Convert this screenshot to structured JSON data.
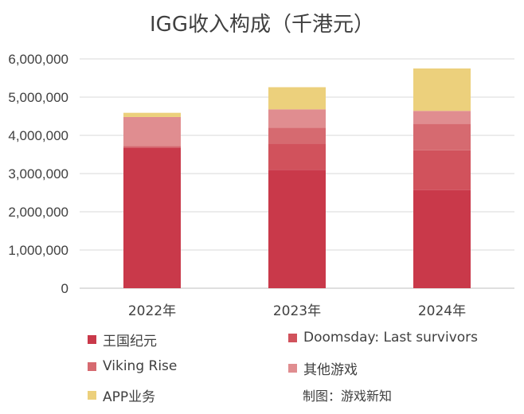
{
  "chart_data": {
    "type": "bar",
    "stacked": true,
    "title": "IGG收入构成（千港元）",
    "categories": [
      "2022年",
      "2023年",
      "2024年"
    ],
    "series": [
      {
        "name": "王国纪元",
        "color": "#c9394a",
        "values": [
          3680000,
          3100000,
          2570000
        ]
      },
      {
        "name": "Doomsday: Last survivors",
        "color": "#d1525c",
        "values": [
          0,
          680000,
          1040000
        ]
      },
      {
        "name": "Viking Rise",
        "color": "#d66a70",
        "values": [
          40000,
          420000,
          690000
        ]
      },
      {
        "name": "其他游戏",
        "color": "#e08d90",
        "values": [
          760000,
          480000,
          340000
        ]
      },
      {
        "name": "APP业务",
        "color": "#ecd07c",
        "values": [
          110000,
          580000,
          1110000
        ]
      }
    ],
    "ylim": [
      0,
      6000000
    ],
    "yticks": [
      0,
      1000000,
      2000000,
      3000000,
      4000000,
      5000000,
      6000000
    ],
    "ytick_labels": [
      "0",
      "1,000,000",
      "2,000,000",
      "3,000,000",
      "4,000,000",
      "5,000,000",
      "6,000,000"
    ],
    "xlabel": "",
    "ylabel": "",
    "grid": true,
    "legend_position": "bottom"
  },
  "credit": "制图：游戏新知"
}
